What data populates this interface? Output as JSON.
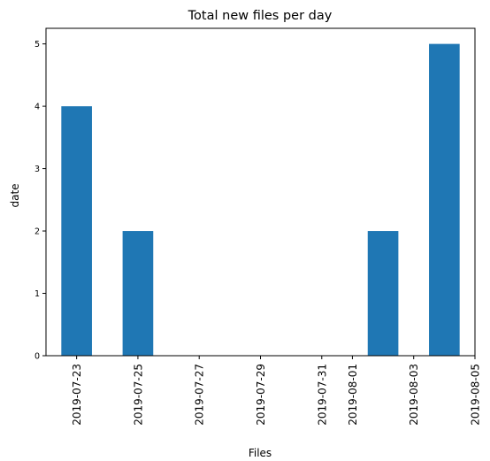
{
  "chart_data": {
    "type": "bar",
    "title": "Total new files per day",
    "xlabel": "Files",
    "ylabel": "date",
    "ylim": [
      0,
      5.25
    ],
    "yticks": [
      0,
      1,
      2,
      3,
      4,
      5
    ],
    "xlim": [
      "2019-07-22",
      "2019-08-05"
    ],
    "xticks": [
      "2019-07-23",
      "2019-07-25",
      "2019-07-27",
      "2019-07-29",
      "2019-07-31",
      "2019-08-01",
      "2019-08-03",
      "2019-08-05"
    ],
    "bars": [
      {
        "date": "2019-07-23",
        "value": 4
      },
      {
        "date": "2019-07-25",
        "value": 2
      },
      {
        "date": "2019-08-02",
        "value": 2
      },
      {
        "date": "2019-08-04",
        "value": 5
      }
    ],
    "grid": false,
    "colors": {
      "bar": "#1f77b4",
      "axis": "#000000"
    }
  }
}
